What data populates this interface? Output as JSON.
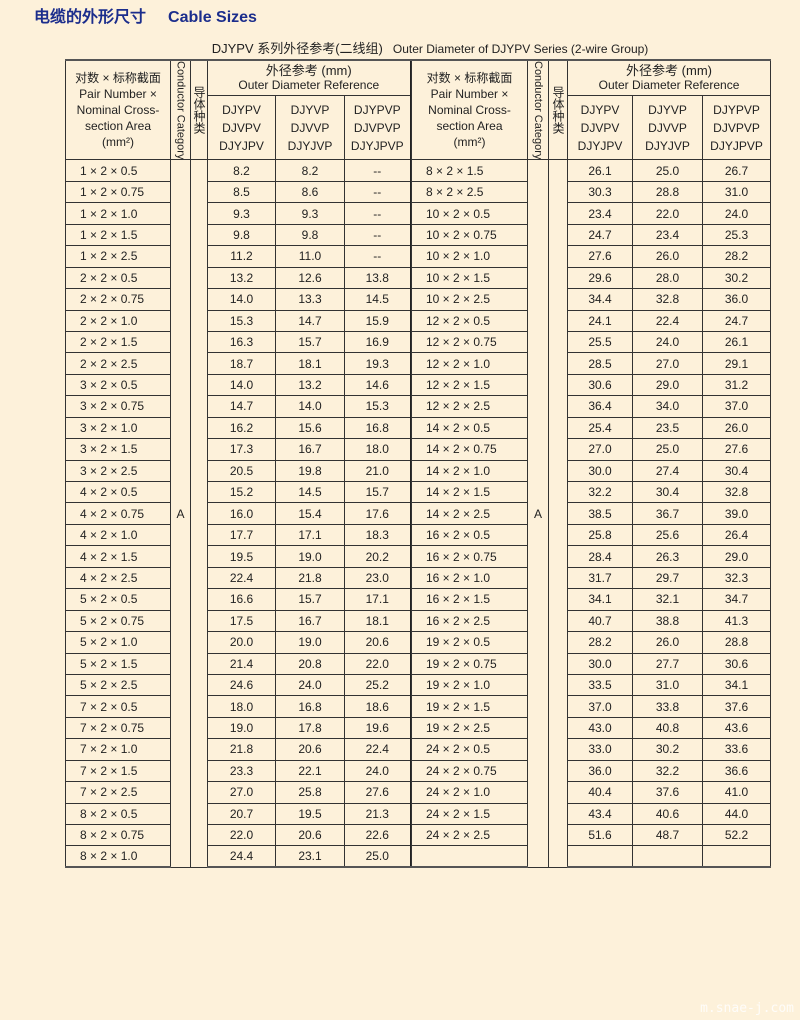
{
  "title": {
    "cn": "电缆的外形尺寸",
    "en": "Cable Sizes"
  },
  "subtitle": {
    "cn": "DJYPV 系列外径参考(二线组)",
    "en": "Outer Diameter of DJYPV Series (2-wire Group)"
  },
  "colors": {
    "title": "#1b2d8c",
    "background": "#fdf1da"
  },
  "header": {
    "pair_cn": "对数 × 标称截面",
    "pair_en1": "Pair Number ×",
    "pair_en2": "Nominal Cross-",
    "pair_en3": "section Area",
    "pair_unit": "(mm²)",
    "category_en": "Conductor Category",
    "category_cn": "导体种类",
    "od_cn": "外径参考 (mm)",
    "od_en": "Outer Diameter Reference",
    "models": [
      [
        "DJYPV",
        "DJVPV",
        "DJYJPV"
      ],
      [
        "DJYVP",
        "DJVVP",
        "DJYJVP"
      ],
      [
        "DJYPVP",
        "DJVPVP",
        "DJYJPVP"
      ]
    ]
  },
  "category": "A",
  "left_rows": [
    [
      "1 × 2 × 0.5",
      "8.2",
      "8.2",
      "--"
    ],
    [
      "1 × 2 × 0.75",
      "8.5",
      "8.6",
      "--"
    ],
    [
      "1 × 2 × 1.0",
      "9.3",
      "9.3",
      "--"
    ],
    [
      "1 × 2 × 1.5",
      "9.8",
      "9.8",
      "--"
    ],
    [
      "1 × 2 × 2.5",
      "11.2",
      "11.0",
      "--"
    ],
    [
      "2 × 2 × 0.5",
      "13.2",
      "12.6",
      "13.8"
    ],
    [
      "2 × 2 × 0.75",
      "14.0",
      "13.3",
      "14.5"
    ],
    [
      "2 × 2 × 1.0",
      "15.3",
      "14.7",
      "15.9"
    ],
    [
      "2 × 2 × 1.5",
      "16.3",
      "15.7",
      "16.9"
    ],
    [
      "2 × 2 × 2.5",
      "18.7",
      "18.1",
      "19.3"
    ],
    [
      "3 × 2 × 0.5",
      "14.0",
      "13.2",
      "14.6"
    ],
    [
      "3 × 2 × 0.75",
      "14.7",
      "14.0",
      "15.3"
    ],
    [
      "3 × 2 × 1.0",
      "16.2",
      "15.6",
      "16.8"
    ],
    [
      "3 × 2 × 1.5",
      "17.3",
      "16.7",
      "18.0"
    ],
    [
      "3 × 2 × 2.5",
      "20.5",
      "19.8",
      "21.0"
    ],
    [
      "4 × 2 × 0.5",
      "15.2",
      "14.5",
      "15.7"
    ],
    [
      "4 × 2 × 0.75",
      "16.0",
      "15.4",
      "17.6"
    ],
    [
      "4 × 2 × 1.0",
      "17.7",
      "17.1",
      "18.3"
    ],
    [
      "4 × 2 × 1.5",
      "19.5",
      "19.0",
      "20.2"
    ],
    [
      "4 × 2 × 2.5",
      "22.4",
      "21.8",
      "23.0"
    ],
    [
      "5 × 2 × 0.5",
      "16.6",
      "15.7",
      "17.1"
    ],
    [
      "5 × 2 × 0.75",
      "17.5",
      "16.7",
      "18.1"
    ],
    [
      "5 × 2 × 1.0",
      "20.0",
      "19.0",
      "20.6"
    ],
    [
      "5 × 2 × 1.5",
      "21.4",
      "20.8",
      "22.0"
    ],
    [
      "5 × 2 × 2.5",
      "24.6",
      "24.0",
      "25.2"
    ],
    [
      "7 × 2 × 0.5",
      "18.0",
      "16.8",
      "18.6"
    ],
    [
      "7 × 2 × 0.75",
      "19.0",
      "17.8",
      "19.6"
    ],
    [
      "7 × 2 × 1.0",
      "21.8",
      "20.6",
      "22.4"
    ],
    [
      "7 × 2 × 1.5",
      "23.3",
      "22.1",
      "24.0"
    ],
    [
      "7 × 2 × 2.5",
      "27.0",
      "25.8",
      "27.6"
    ],
    [
      "8 × 2 × 0.5",
      "20.7",
      "19.5",
      "21.3"
    ],
    [
      "8 × 2 × 0.75",
      "22.0",
      "20.6",
      "22.6"
    ],
    [
      "8 × 2 × 1.0",
      "24.4",
      "23.1",
      "25.0"
    ]
  ],
  "right_rows": [
    [
      "8 × 2 × 1.5",
      "26.1",
      "25.0",
      "26.7"
    ],
    [
      "8 × 2 × 2.5",
      "30.3",
      "28.8",
      "31.0"
    ],
    [
      "10 × 2 × 0.5",
      "23.4",
      "22.0",
      "24.0"
    ],
    [
      "10 × 2 × 0.75",
      "24.7",
      "23.4",
      "25.3"
    ],
    [
      "10 × 2 × 1.0",
      "27.6",
      "26.0",
      "28.2"
    ],
    [
      "10 × 2 × 1.5",
      "29.6",
      "28.0",
      "30.2"
    ],
    [
      "10 × 2 × 2.5",
      "34.4",
      "32.8",
      "36.0"
    ],
    [
      "12 × 2 × 0.5",
      "24.1",
      "22.4",
      "24.7"
    ],
    [
      "12 × 2 × 0.75",
      "25.5",
      "24.0",
      "26.1"
    ],
    [
      "12 × 2 × 1.0",
      "28.5",
      "27.0",
      "29.1"
    ],
    [
      "12 × 2 × 1.5",
      "30.6",
      "29.0",
      "31.2"
    ],
    [
      "12 × 2 × 2.5",
      "36.4",
      "34.0",
      "37.0"
    ],
    [
      "14 × 2 × 0.5",
      "25.4",
      "23.5",
      "26.0"
    ],
    [
      "14 × 2 × 0.75",
      "27.0",
      "25.0",
      "27.6"
    ],
    [
      "14 × 2 × 1.0",
      "30.0",
      "27.4",
      "30.4"
    ],
    [
      "14 × 2 × 1.5",
      "32.2",
      "30.4",
      "32.8"
    ],
    [
      "14 × 2 × 2.5",
      "38.5",
      "36.7",
      "39.0"
    ],
    [
      "16 × 2 × 0.5",
      "25.8",
      "25.6",
      "26.4"
    ],
    [
      "16 × 2 × 0.75",
      "28.4",
      "26.3",
      "29.0"
    ],
    [
      "16 × 2 × 1.0",
      "31.7",
      "29.7",
      "32.3"
    ],
    [
      "16 × 2 × 1.5",
      "34.1",
      "32.1",
      "34.7"
    ],
    [
      "16 × 2 × 2.5",
      "40.7",
      "38.8",
      "41.3"
    ],
    [
      "19 × 2 × 0.5",
      "28.2",
      "26.0",
      "28.8"
    ],
    [
      "19 × 2 × 0.75",
      "30.0",
      "27.7",
      "30.6"
    ],
    [
      "19 × 2 × 1.0",
      "33.5",
      "31.0",
      "34.1"
    ],
    [
      "19 × 2 × 1.5",
      "37.0",
      "33.8",
      "37.6"
    ],
    [
      "19 × 2 × 2.5",
      "43.0",
      "40.8",
      "43.6"
    ],
    [
      "24 × 2 × 0.5",
      "33.0",
      "30.2",
      "33.6"
    ],
    [
      "24 × 2 × 0.75",
      "36.0",
      "32.2",
      "36.6"
    ],
    [
      "24 × 2 × 1.0",
      "40.4",
      "37.6",
      "41.0"
    ],
    [
      "24 × 2 × 1.5",
      "43.4",
      "40.6",
      "44.0"
    ],
    [
      "24 × 2 × 2.5",
      "51.6",
      "48.7",
      "52.2"
    ],
    [
      "",
      "",
      "",
      ""
    ]
  ],
  "watermark": "m.snae-j.com"
}
